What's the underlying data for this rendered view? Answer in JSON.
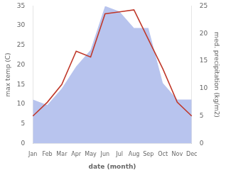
{
  "chart_data": {
    "type": "line",
    "categories": [
      "Jan",
      "Feb",
      "Mar",
      "Apr",
      "May",
      "Jun",
      "Jul",
      "Aug",
      "Sep",
      "Oct",
      "Nov",
      "Dec"
    ],
    "xlabel": "date (month)",
    "ylabel": "max temp (C)",
    "y2label": "med. precipitation (kg/m2)",
    "series": [
      {
        "type": "area",
        "color": "#b8c4ee",
        "axis": "y2",
        "values": [
          8,
          7,
          10,
          14,
          17,
          25,
          24,
          21,
          21,
          11,
          8,
          8
        ]
      },
      {
        "type": "line",
        "color": "#c0392b",
        "values": [
          7,
          10.5,
          15,
          23.5,
          22,
          33,
          33.5,
          34,
          26.5,
          19,
          10.5,
          7
        ]
      }
    ],
    "ylim": [
      0,
      35
    ],
    "yticks": [
      0,
      5,
      10,
      15,
      20,
      25,
      30,
      35
    ],
    "y2lim": [
      0,
      25
    ],
    "y2ticks": [
      0,
      5,
      10,
      15,
      20,
      25
    ],
    "grid": false
  }
}
